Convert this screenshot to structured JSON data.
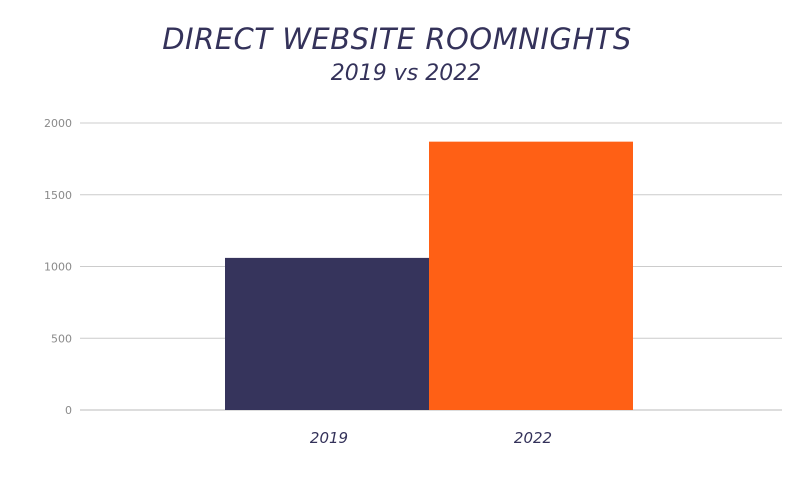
{
  "colors": {
    "series_2019": "#36345c",
    "series_2022": "#ff6015",
    "grid": "#cccccc"
  },
  "chart_data": {
    "type": "bar",
    "title": "DIRECT WEBSITE ROOMNIGHTS",
    "subtitle": "2019 vs 2022",
    "categories": [
      "2019",
      "2022"
    ],
    "values": [
      1060,
      1870
    ],
    "yticks": [
      "0",
      "500",
      "1000",
      "1500",
      "2000"
    ],
    "ylim": [
      0,
      2000
    ],
    "grid": true,
    "legend": "none"
  }
}
